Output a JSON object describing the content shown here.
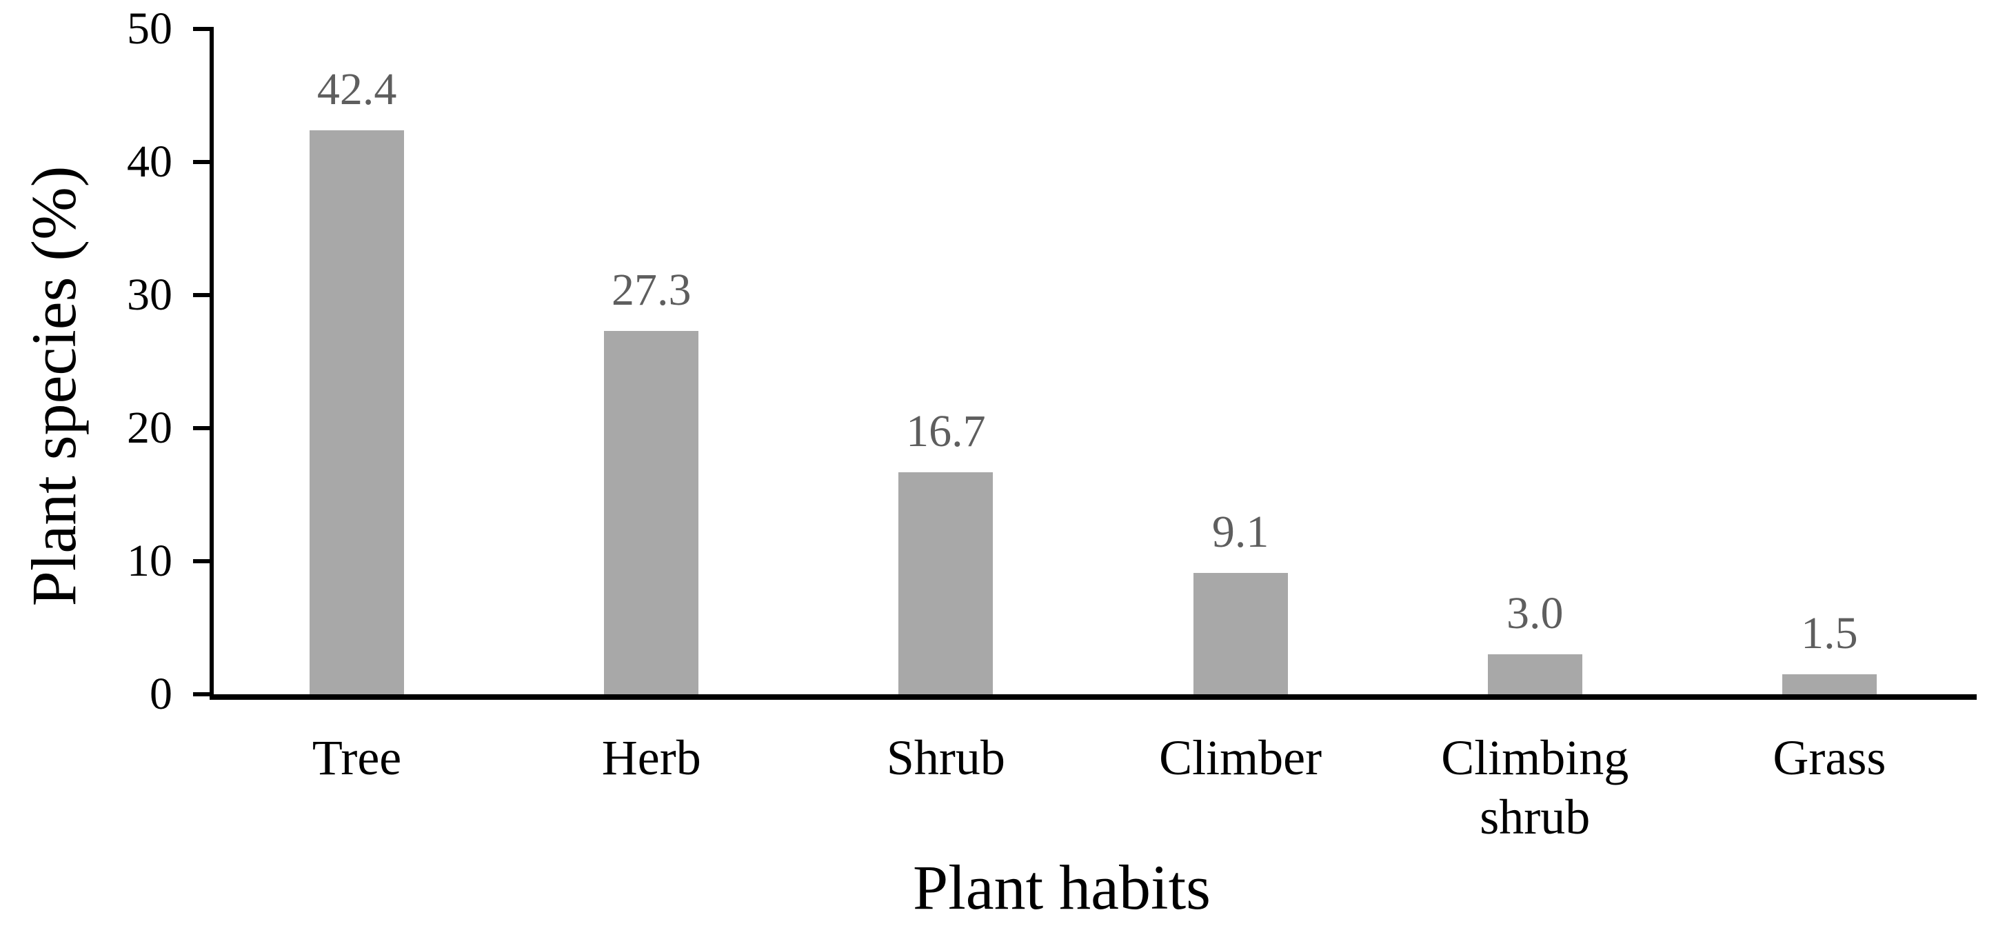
{
  "figure": {
    "background": "#ffffff"
  },
  "chart_data": {
    "type": "bar",
    "title": "",
    "xlabel": "Plant habits",
    "ylabel": "Plant species (%)",
    "categories": [
      "Tree",
      "Herb",
      "Shrub",
      "Climber",
      "Climbing shrub",
      "Grass"
    ],
    "values": [
      42.4,
      27.3,
      16.7,
      9.1,
      3.0,
      1.5
    ],
    "data_labels": [
      "42.4",
      "27.3",
      "16.7",
      "9.1",
      "3.0",
      "1.5"
    ],
    "ylim": [
      0,
      50
    ],
    "yticks": [
      0,
      10,
      20,
      30,
      40,
      50
    ],
    "grid": false,
    "legend_position": "none",
    "bar_color": "#a8a8a8",
    "data_label_color": "#5e5e5e",
    "axis_color": "#000000",
    "text_color": "#000000"
  }
}
